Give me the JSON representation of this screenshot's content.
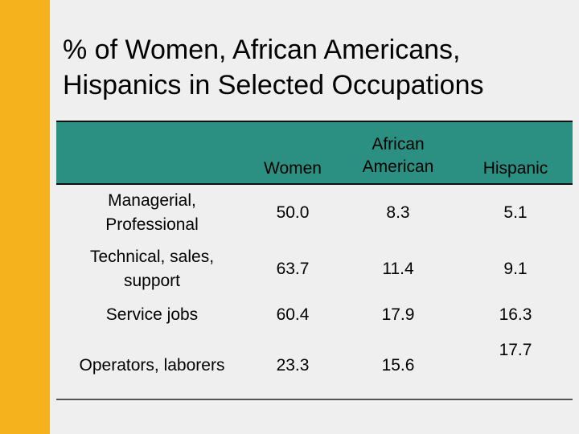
{
  "slide": {
    "title_line1": "% of Women, African Americans,",
    "title_line2": "Hispanics in Selected Occupations",
    "accent_color": "#f5b21c",
    "header_color": "#2b8f82"
  },
  "table": {
    "headers": [
      "",
      "Women",
      "African American",
      "Hispanic"
    ],
    "rows": [
      {
        "label_line1": "Managerial,",
        "label_line2": "Professional",
        "women": "50.0",
        "african_american": "8.3",
        "hispanic": "5.1"
      },
      {
        "label_line1": "Technical, sales,",
        "label_line2": "support",
        "women": "63.7",
        "african_american": "11.4",
        "hispanic": "9.1"
      },
      {
        "label_line1": "Service jobs",
        "label_line2": "",
        "women": "60.4",
        "african_american": "17.9",
        "hispanic": "16.3"
      },
      {
        "label_line1": "Operators, laborers",
        "label_line2": "",
        "women": "23.3",
        "african_american": "15.6",
        "hispanic": "17.7"
      }
    ]
  }
}
